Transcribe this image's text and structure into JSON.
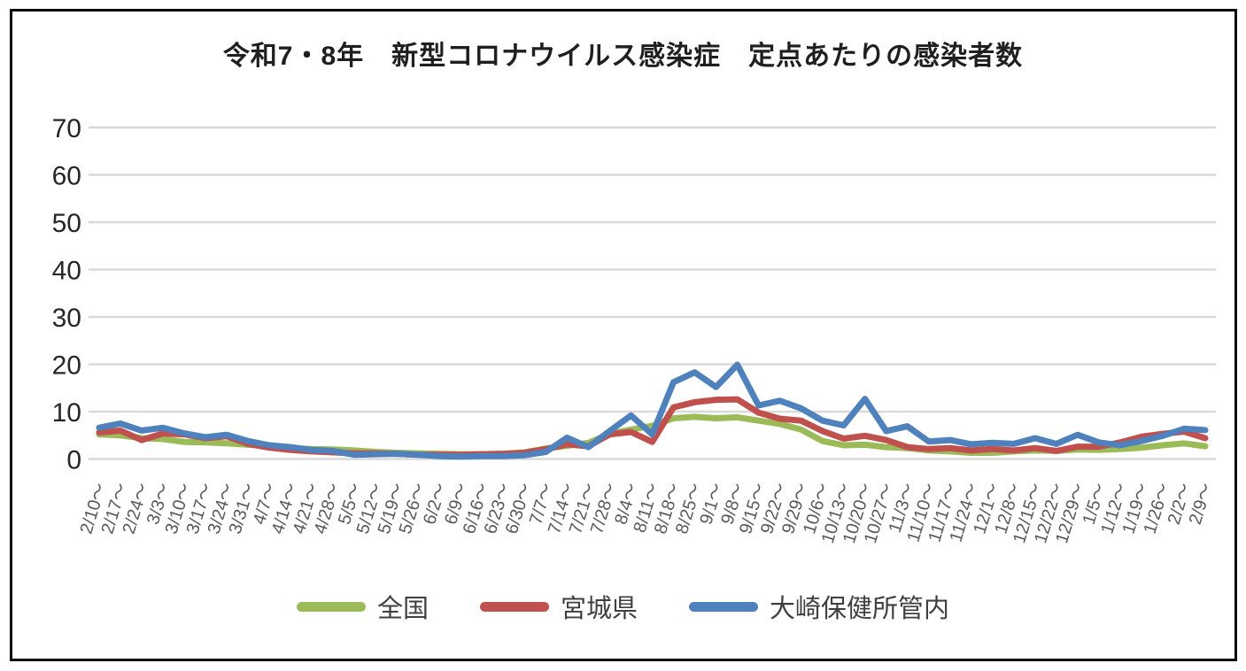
{
  "title": "令和7・8年　新型コロナウイルス感染症　定点あたりの感染者数",
  "colors": {
    "grid": "#d9d9d9",
    "y_tick_text": "#262626",
    "x_tick_text": "#595959",
    "legend_text": "#3f3f3f",
    "series_zenkoku": "#9bbb59",
    "series_miyagi": "#c0504d",
    "series_osaki": "#4f81bd"
  },
  "chart_data": {
    "type": "line",
    "title": "令和7・8年　新型コロナウイルス感染症　定点あたりの感染者数",
    "xlabel": "",
    "ylabel": "",
    "ylim": [
      0,
      70
    ],
    "yticks": [
      0,
      10,
      20,
      30,
      40,
      50,
      60,
      70
    ],
    "grid": true,
    "legend_position": "bottom",
    "categories": [
      "2/10～",
      "2/17～",
      "2/24～",
      "3/3～",
      "3/10～",
      "3/17～",
      "3/24～",
      "3/31～",
      "4/7～",
      "4/14～",
      "4/21～",
      "4/28～",
      "5/5～",
      "5/12～",
      "5/19～",
      "5/26～",
      "6/2～",
      "6/9～",
      "6/16～",
      "6/23～",
      "6/30～",
      "7/7～",
      "7/14～",
      "7/21～",
      "7/28～",
      "8/4～",
      "8/11～",
      "8/18～",
      "8/25～",
      "9/1～",
      "9/8～",
      "9/15～",
      "9/22～",
      "9/29～",
      "10/6～",
      "10/13～",
      "10/20～",
      "10/27～",
      "11/3～",
      "11/10～",
      "11/17～",
      "11/24～",
      "12/1～",
      "12/8～",
      "12/15～",
      "12/22～",
      "12/29～",
      "1/5～",
      "1/12～",
      "1/19～",
      "1/26～",
      "2/2～",
      "2/9～"
    ],
    "series": [
      {
        "name": "全国",
        "color": "#9bbb59",
        "values": [
          5.2,
          5.0,
          4.4,
          4.2,
          3.6,
          3.5,
          3.3,
          3.0,
          2.8,
          2.3,
          2.1,
          2.0,
          1.8,
          1.5,
          1.3,
          1.2,
          1.1,
          1.0,
          1.0,
          1.1,
          1.4,
          2.2,
          2.8,
          3.4,
          5.3,
          6.2,
          7.0,
          8.6,
          8.9,
          8.6,
          8.8,
          8.1,
          7.4,
          6.2,
          3.8,
          2.9,
          3.0,
          2.5,
          2.3,
          1.8,
          1.6,
          1.3,
          1.3,
          1.6,
          1.8,
          1.7,
          2.0,
          1.9,
          2.1,
          2.4,
          2.9,
          3.3,
          2.7
        ]
      },
      {
        "name": "宮城県",
        "color": "#c0504d",
        "values": [
          5.6,
          6.0,
          4.0,
          5.4,
          5.2,
          4.4,
          4.8,
          3.2,
          2.4,
          1.9,
          1.6,
          1.4,
          1.2,
          1.2,
          1.1,
          0.9,
          0.9,
          0.9,
          1.0,
          1.1,
          1.3,
          2.1,
          3.1,
          2.7,
          5.2,
          5.7,
          3.6,
          10.9,
          12.0,
          12.5,
          12.6,
          9.8,
          8.5,
          8.1,
          5.9,
          4.3,
          4.9,
          4.0,
          2.5,
          2.1,
          2.3,
          1.8,
          2.1,
          1.8,
          2.3,
          1.7,
          2.6,
          2.6,
          3.5,
          4.7,
          5.3,
          5.8,
          4.4
        ]
      },
      {
        "name": "大崎保健所管内",
        "color": "#4f81bd",
        "values": [
          6.6,
          7.5,
          6.0,
          6.6,
          5.4,
          4.6,
          5.1,
          3.8,
          2.9,
          2.5,
          1.9,
          1.7,
          0.9,
          1.0,
          1.1,
          0.9,
          0.6,
          0.5,
          0.6,
          0.6,
          0.8,
          1.5,
          4.5,
          2.5,
          5.9,
          9.2,
          5.2,
          16.2,
          18.3,
          15.2,
          19.9,
          11.3,
          12.3,
          10.7,
          8.1,
          7.1,
          12.7,
          5.9,
          6.9,
          3.7,
          4.0,
          3.1,
          3.4,
          3.2,
          4.4,
          3.2,
          5.1,
          3.5,
          2.9,
          3.8,
          4.9,
          6.4,
          6.1
        ]
      }
    ]
  }
}
